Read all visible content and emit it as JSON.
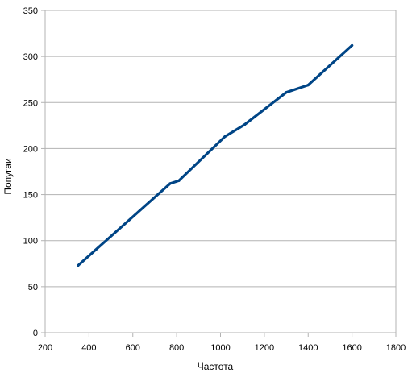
{
  "chart_data": {
    "type": "line",
    "title": "",
    "xlabel": "Частота",
    "ylabel": "Попугаи",
    "xlim": [
      200,
      1800
    ],
    "ylim": [
      0,
      350
    ],
    "x_ticks": [
      200,
      400,
      600,
      800,
      1000,
      1200,
      1400,
      1600,
      1800
    ],
    "y_ticks": [
      0,
      50,
      100,
      150,
      200,
      250,
      300,
      350
    ],
    "grid": "horizontal",
    "legend": "none",
    "series": [
      {
        "color": "#004586",
        "points": [
          [
            350,
            73
          ],
          [
            770,
            162
          ],
          [
            810,
            165
          ],
          [
            1020,
            213
          ],
          [
            1110,
            226
          ],
          [
            1300,
            261
          ],
          [
            1400,
            269
          ],
          [
            1600,
            312
          ]
        ]
      }
    ]
  }
}
